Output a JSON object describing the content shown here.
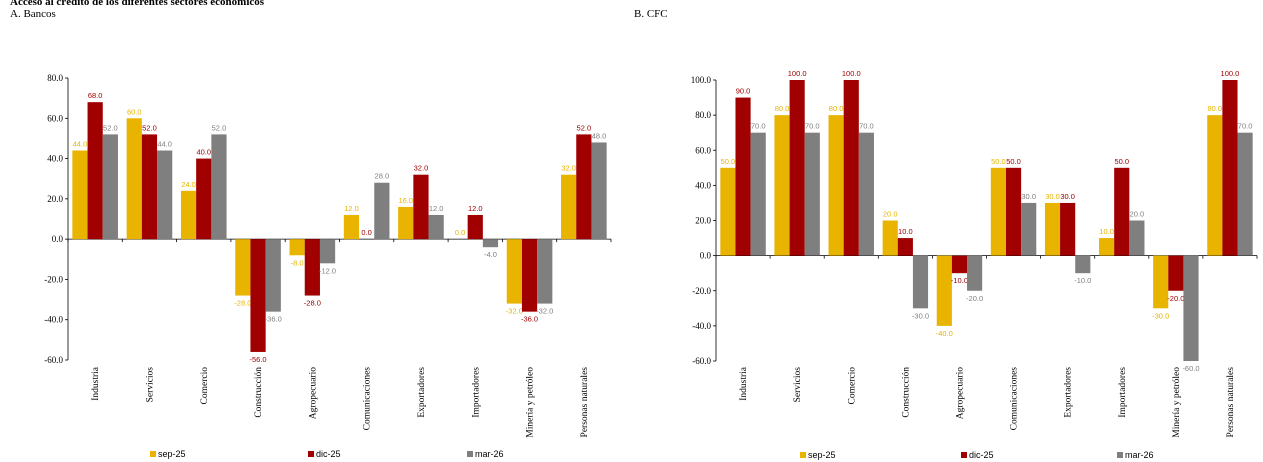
{
  "page": {
    "title": "Acceso al crédito de los diferentes sectores económicos"
  },
  "colors": {
    "sep-25": "#E8B400",
    "dic-25": "#A00000",
    "mar-26": "#7F7F7F"
  },
  "chart_data": [
    {
      "type": "bar",
      "panel_label": "A. Bancos",
      "categories": [
        "Industria",
        "Servicios",
        "Comercio",
        "Construcción",
        "Agropecuario",
        "Comunicaciones",
        "Exportadores",
        "Importadores",
        "Minería y petróleo",
        "Personas naturales"
      ],
      "series": [
        {
          "name": "sep-25",
          "values": [
            44,
            60,
            24,
            -28,
            -8,
            12,
            16,
            0,
            -32,
            32
          ]
        },
        {
          "name": "dic-25",
          "values": [
            68,
            52,
            40,
            -56,
            -28,
            0,
            32,
            12,
            -36,
            52
          ]
        },
        {
          "name": "mar-26",
          "values": [
            52,
            44,
            52,
            -36,
            -12,
            28,
            12,
            -4,
            -32,
            48
          ]
        }
      ],
      "ylim": [
        -60,
        80
      ],
      "yticks": [
        -60,
        -40,
        -20,
        0,
        20,
        40,
        60,
        80
      ],
      "grid": false,
      "legend": "bottom"
    },
    {
      "type": "bar",
      "panel_label": "B. CFC",
      "categories": [
        "Industria",
        "Servicios",
        "Comercio",
        "Construcción",
        "Agropecuario",
        "Comunicaciones",
        "Exportadores",
        "Importadores",
        "Minería y petróleo",
        "Personas naturales"
      ],
      "series": [
        {
          "name": "sep-25",
          "values": [
            50,
            80,
            80,
            20,
            -40,
            50,
            30,
            10,
            -30,
            80
          ]
        },
        {
          "name": "dic-25",
          "values": [
            90,
            100,
            100,
            10,
            -10,
            50,
            30,
            50,
            -20,
            100
          ]
        },
        {
          "name": "mar-26",
          "values": [
            70,
            70,
            70,
            -30,
            -20,
            30,
            -10,
            20,
            -60,
            70
          ]
        }
      ],
      "ylim": [
        -60,
        100
      ],
      "yticks": [
        -60,
        -40,
        -20,
        0,
        20,
        40,
        60,
        80,
        100
      ],
      "grid": false,
      "legend": "bottom"
    }
  ]
}
